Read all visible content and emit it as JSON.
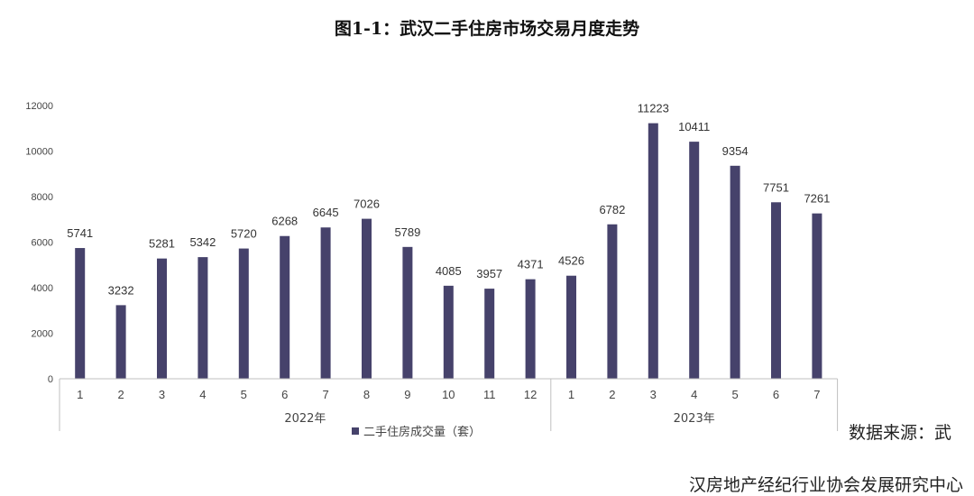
{
  "chart_data": {
    "type": "bar",
    "title": "图1-1：武汉二手住房市场交易月度走势",
    "groups": [
      {
        "label": "2022年",
        "categories": [
          "1",
          "2",
          "3",
          "4",
          "5",
          "6",
          "7",
          "8",
          "9",
          "10",
          "11",
          "12"
        ]
      },
      {
        "label": "2023年",
        "categories": [
          "1",
          "2",
          "3",
          "4",
          "5",
          "6",
          "7"
        ]
      }
    ],
    "series": [
      {
        "name": "二手住房成交量（套）",
        "values": [
          5741,
          3232,
          5281,
          5342,
          5720,
          6268,
          6645,
          7026,
          5789,
          4085,
          3957,
          4371,
          4526,
          6782,
          11223,
          10411,
          9354,
          7751,
          7261
        ]
      }
    ],
    "yticks": [
      "0",
      "2000",
      "4000",
      "6000",
      "8000",
      "10000",
      "12000"
    ],
    "ylim": [
      0,
      12000
    ],
    "grid": false,
    "legend_position": "bottom",
    "bar_color": "#46426b"
  },
  "source_line1": "数据来源：武",
  "source_line2": "汉房地产经纪行业协会发展研究中心"
}
